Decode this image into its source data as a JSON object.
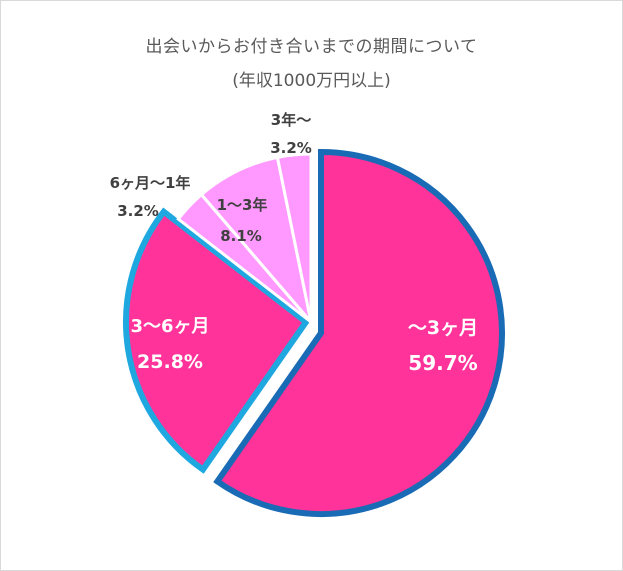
{
  "chart_data": {
    "type": "pie",
    "title": "出会いからお付き合いまでの期間について",
    "subtitle": "(年収1000万円以上)",
    "categories": [
      "〜3ヶ月",
      "3〜6ヶ月",
      "6ヶ月〜1年",
      "1〜3年",
      "3年〜"
    ],
    "values": [
      59.7,
      25.8,
      3.2,
      8.1,
      3.2
    ],
    "value_labels": [
      "59.7%",
      "25.8%",
      "3.2%",
      "8.1%",
      "3.2%"
    ],
    "colors": [
      "#ff3399",
      "#ff3399",
      "#ff99ff",
      "#ff99ff",
      "#ff99ff"
    ],
    "border_colors": [
      "#1a6bb5",
      "#1fa8e0",
      "#ffffff",
      "#ffffff",
      "#ffffff"
    ],
    "start_angle_deg": 0,
    "direction": "clockwise",
    "exploded": [
      true,
      true,
      false,
      false,
      false
    ],
    "legend": "none",
    "label_colors": [
      "#ffffff",
      "#ffffff",
      "#404040",
      "#404040",
      "#404040"
    ]
  },
  "title": {
    "line1": "出会いからお付き合いまでの期間について",
    "line2": "(年収1000万円以上)"
  },
  "slices": [
    {
      "name": "〜3ヶ月",
      "pct": "59.7%"
    },
    {
      "name": "3〜6ヶ月",
      "pct": "25.8%"
    },
    {
      "name": "6ヶ月〜1年",
      "pct": "3.2%"
    },
    {
      "name": "1〜3年",
      "pct": "8.1%"
    },
    {
      "name": "3年〜",
      "pct": "3.2%"
    }
  ]
}
